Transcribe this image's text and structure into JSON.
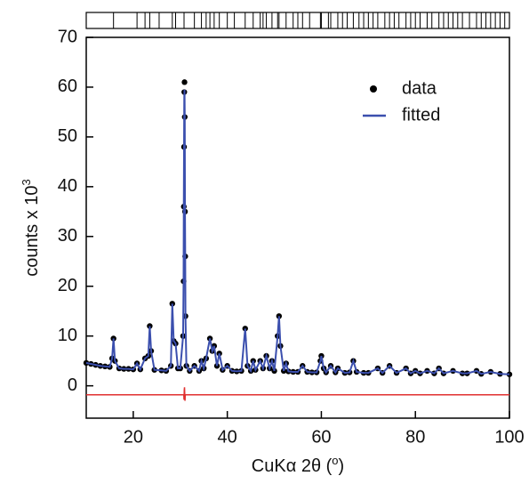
{
  "chart_data": {
    "type": "line",
    "xlabel_parts": [
      "CuKα 2θ (",
      "o",
      ")"
    ],
    "ylabel_parts": [
      "counts x 10",
      "3"
    ],
    "x": [
      10,
      11,
      12,
      13,
      14,
      15,
      15.5,
      15.8,
      16.1,
      17,
      18,
      19,
      20,
      20.8,
      21.5,
      22.5,
      23.2,
      23.5,
      23.8,
      24.5,
      26,
      27,
      28,
      28.3,
      28.6,
      29,
      29.5,
      30,
      30.6,
      30.7,
      30.75,
      30.8,
      30.85,
      30.9,
      30.95,
      31,
      31.05,
      31.1,
      31.3,
      32,
      33,
      34,
      34.5,
      35,
      35.5,
      36.3,
      36.8,
      37.2,
      37.8,
      38.3,
      39,
      40,
      41,
      42,
      43,
      43.8,
      44.3,
      45,
      45.5,
      46,
      47,
      47.6,
      48.3,
      49,
      49.5,
      50,
      50.7,
      51,
      51.3,
      52,
      52.5,
      53,
      54,
      55,
      56,
      57,
      58,
      59,
      59.8,
      60,
      60.5,
      61,
      62,
      63,
      63.5,
      65,
      66,
      66.8,
      67.5,
      69,
      70,
      72,
      73,
      74.5,
      76,
      78,
      79,
      80,
      81,
      82.5,
      84,
      85,
      86,
      88,
      90,
      91,
      93,
      94,
      96,
      98,
      100
    ],
    "series": [
      {
        "name": "data",
        "color": "#000000",
        "marker": true,
        "values": [
          4.6,
          4.4,
          4.2,
          4.0,
          3.9,
          3.8,
          5.5,
          9.5,
          5,
          3.5,
          3.4,
          3.4,
          3.3,
          4.5,
          3.3,
          5.5,
          6,
          12,
          7,
          3.2,
          3.1,
          3,
          4,
          16.5,
          9,
          8.5,
          3.5,
          3.5,
          10,
          21,
          36,
          48,
          59,
          61,
          54,
          35,
          26,
          14,
          4,
          3,
          4,
          3,
          5,
          3.5,
          5.5,
          9.5,
          7,
          8,
          4,
          6.5,
          3.2,
          4,
          3,
          2.9,
          3,
          11.5,
          4,
          3,
          5,
          3.2,
          5,
          3.5,
          6,
          3.5,
          5,
          3,
          10,
          14,
          8,
          3,
          4.5,
          2.9,
          2.8,
          2.8,
          4,
          2.8,
          2.7,
          2.7,
          5,
          6,
          3.5,
          2.7,
          4,
          2.7,
          3.5,
          2.6,
          2.7,
          5,
          2.8,
          2.6,
          2.6,
          3.5,
          2.6,
          4,
          2.6,
          3.5,
          2.5,
          3,
          2.5,
          3,
          2.5,
          3.5,
          2.5,
          3,
          2.5,
          2.5,
          3,
          2.4,
          2.8,
          2.4,
          2.3
        ]
      },
      {
        "name": "fitted",
        "color": "#3b4fae",
        "marker": false,
        "values": [
          4.6,
          4.4,
          4.2,
          4.0,
          3.9,
          3.8,
          5.5,
          9.5,
          5,
          3.5,
          3.4,
          3.4,
          3.3,
          4.5,
          3.3,
          5.5,
          6,
          12,
          7,
          3.2,
          3.1,
          3,
          4,
          16.5,
          9,
          8.5,
          3.5,
          3.5,
          10,
          21,
          36,
          48,
          58,
          59.5,
          54,
          35,
          26,
          14,
          4,
          3,
          4,
          3,
          5,
          3.5,
          5.5,
          9.5,
          7,
          8,
          4,
          6.5,
          3.2,
          4,
          3,
          2.9,
          3,
          11.5,
          4,
          3,
          5,
          3.2,
          5,
          3.5,
          6,
          3.5,
          5,
          3,
          10,
          14,
          8,
          3,
          4.5,
          2.9,
          2.8,
          2.8,
          4,
          2.8,
          2.7,
          2.7,
          5,
          6,
          3.5,
          2.7,
          4,
          2.7,
          3.5,
          2.6,
          2.7,
          5,
          2.8,
          2.6,
          2.6,
          3.5,
          2.6,
          4,
          2.6,
          3.5,
          2.5,
          3,
          2.5,
          3,
          2.5,
          3.5,
          2.5,
          3,
          2.5,
          2.5,
          3,
          2.4,
          2.8,
          2.4,
          2.3
        ]
      }
    ],
    "difference": {
      "color": "#e03030",
      "values": [
        -1.8,
        -1.8,
        -1.8,
        -1.8,
        -1.8,
        -1.8,
        -1.8,
        -1.8,
        -1.8,
        -1.8,
        -1.8,
        -1.8,
        -1.8,
        -1.8,
        -1.8,
        -1.8,
        -1.8,
        -1.8,
        -1.8,
        -1.8,
        -1.8,
        -1.8,
        -1.8,
        -1.8,
        -1.8,
        -1.8,
        -1.8,
        -1.8,
        -1.8,
        -1.8,
        -1.8,
        -2.8,
        -0.8,
        -0.3,
        -1.8,
        -3,
        -1.8,
        -1.8,
        -1.8,
        -1.8,
        -1.8,
        -1.8,
        -1.8,
        -1.8,
        -1.8,
        -1.8,
        -1.8,
        -1.8,
        -1.8,
        -1.8,
        -1.8,
        -1.8,
        -1.8,
        -1.8,
        -1.8,
        -1.8,
        -1.8,
        -1.8,
        -1.8,
        -1.8,
        -1.8,
        -1.8,
        -1.8,
        -1.8,
        -1.8,
        -1.8,
        -1.8,
        -1.8,
        -1.8,
        -1.8,
        -1.8,
        -1.8,
        -1.8,
        -1.8,
        -1.8,
        -1.8,
        -1.8,
        -1.8,
        -1.8,
        -1.8,
        -1.8,
        -1.8,
        -1.8,
        -1.8,
        -1.8,
        -1.8,
        -1.8,
        -1.8,
        -1.8,
        -1.8,
        -1.8,
        -1.8,
        -1.8,
        -1.8,
        -1.8,
        -1.8,
        -1.8,
        -1.8,
        -1.8,
        -1.8,
        -1.8,
        -1.8,
        -1.8,
        -1.8,
        -1.8,
        -1.8,
        -1.8,
        -1.8,
        -1.8,
        -1.8,
        -1.8
      ]
    },
    "reflections": [
      15.8,
      20.8,
      22.5,
      23.5,
      25.5,
      28.3,
      29,
      30.8,
      33,
      34.5,
      35.5,
      36.3,
      37.2,
      38.3,
      40,
      41.5,
      43.8,
      45.5,
      47,
      47.6,
      48.3,
      49.5,
      50.7,
      51,
      52.5,
      54,
      55,
      56,
      57.5,
      59.8,
      60,
      61.5,
      62,
      63.5,
      64.5,
      65.5,
      66.8,
      68,
      69,
      70,
      71,
      72,
      73.5,
      74.5,
      75.5,
      76.5,
      78,
      79,
      80,
      81,
      82.5,
      83.5,
      85,
      86,
      87,
      88,
      89,
      90,
      91.5,
      93,
      94,
      95,
      96,
      97,
      98,
      99
    ],
    "xlim": [
      10,
      100
    ],
    "xticks": [
      20,
      40,
      60,
      80,
      100
    ],
    "ylim": [
      -6.5,
      70
    ],
    "yticks": [
      0,
      10,
      20,
      30,
      40,
      50,
      60,
      70
    ],
    "legend": "upper right"
  }
}
